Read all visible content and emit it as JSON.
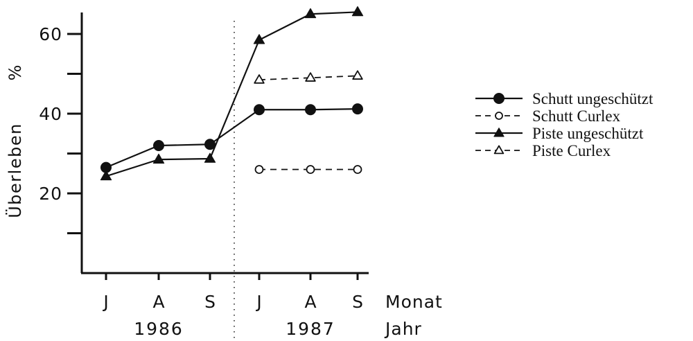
{
  "chart_data": {
    "type": "line",
    "categories": [
      "J",
      "A",
      "S",
      "J",
      "A",
      "S"
    ],
    "year_labels": [
      "1986",
      "1987"
    ],
    "xlabel": "Monat",
    "xlabel2": "Jahr",
    "ylabel": "Überleben",
    "yunit": "%",
    "ylim": [
      0,
      66
    ],
    "yticks": [
      10,
      20,
      30,
      40,
      50,
      60
    ],
    "ytick_labels": [
      "",
      "20",
      "",
      "40",
      "",
      "60"
    ],
    "divider_between": [
      2,
      3
    ],
    "legend_position": "right",
    "series": [
      {
        "name": "Schutt ungeschützt",
        "marker": "circle",
        "filled": true,
        "dashed": false,
        "segments": [
          [
            0,
            2
          ],
          [
            2,
            5
          ]
        ],
        "values": [
          26.5,
          32,
          32.3,
          41,
          41,
          41.2
        ]
      },
      {
        "name": "Schutt Curlex",
        "marker": "circle",
        "filled": false,
        "dashed": true,
        "segments": [
          [
            3,
            5
          ]
        ],
        "values": [
          null,
          null,
          null,
          26,
          26,
          26
        ]
      },
      {
        "name": "Piste ungeschützt",
        "marker": "triangle",
        "filled": true,
        "dashed": false,
        "segments": [
          [
            0,
            5
          ]
        ],
        "values": [
          24.3,
          28.5,
          28.7,
          58.5,
          65,
          65.5
        ]
      },
      {
        "name": "Piste Curlex",
        "marker": "triangle",
        "filled": false,
        "dashed": true,
        "segments": [
          [
            3,
            5
          ]
        ],
        "values": [
          null,
          null,
          null,
          48.5,
          49,
          49.5
        ]
      }
    ]
  }
}
